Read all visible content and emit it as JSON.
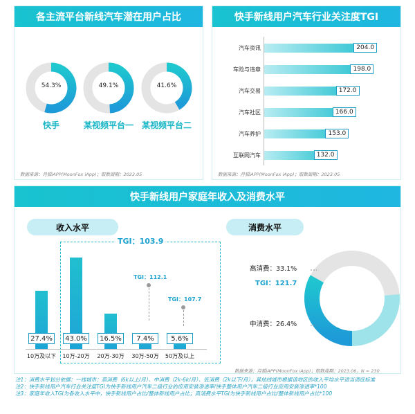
{
  "panel1": {
    "title": "各主流平台新线汽车潜在用户占比",
    "source": "数据来源：月狐iAPP(MoonFox iApp)；取数周期：2023.05",
    "chart_data": {
      "type": "pie",
      "categories": [
        "快手",
        "某视频平台一",
        "某视频平台二"
      ],
      "values": [
        54.3,
        49.1,
        41.6
      ],
      "value_labels": [
        "54.3%",
        "49.1%",
        "41.6%"
      ]
    }
  },
  "panel2": {
    "title": "快手新线用户汽车行业关注度TGI",
    "source": "数据来源：月狐iAPP(MoonFox iApp)；取数周期：2023.05",
    "chart_data": {
      "type": "bar",
      "orientation": "horizontal",
      "categories": [
        "汽车资讯",
        "车险与违章",
        "汽车交易",
        "汽车社区",
        "汽车养护",
        "互联网汽车"
      ],
      "values": [
        204.0,
        198.0,
        172.0,
        166.0,
        153.0,
        132.0
      ],
      "value_labels": [
        "204.0",
        "198.0",
        "172.0",
        "166.0",
        "153.0",
        "132.0"
      ]
    }
  },
  "panel3": {
    "title": "快手新线用户家庭年收入及消费水平",
    "source": "数据来源：月狐iAPP(MoonFox iApp)；取数周期：2023.06，N = 230",
    "income": {
      "pill": "收入水平",
      "tgi_main": "TGI：103.9",
      "tgi_3": "TGI：112.1",
      "tgi_4": "TGI：107.7",
      "chart_data": {
        "type": "bar",
        "categories": [
          "10万及以下",
          "10万-20万",
          "20万-30万",
          "30万-50万",
          "50万及以上"
        ],
        "values": [
          27.4,
          43.0,
          16.5,
          7.4,
          5.6
        ],
        "value_labels": [
          "27.4%",
          "43.0%",
          "16.5%",
          "7.4%",
          "5.6%"
        ]
      }
    },
    "consumption": {
      "pill": "消费水平",
      "high_label": "高消费：33.1%",
      "tgi": "TGI：121.7",
      "mid_label": "中消费：26.4%",
      "chart_data": {
        "type": "pie",
        "categories": [
          "高消费",
          "中消费"
        ],
        "values": [
          33.1,
          26.4
        ]
      }
    }
  },
  "notes": [
    "注1：消费水平划分依据：一线城市：高消费（6k以上/月）、中消费（2k-6k/月）、低消费（2k以下/月），其他线城市根据该地区的收入平均水平适当调低标准",
    "注2：快手新线用户汽车行业关注度TGI为快手新线用户汽车二级行业的应用安装渗透率/快手整体用户汽车二级行业应用安装渗透率*100",
    "注3：家庭年收入TGI为各收入水平中，快手新线用户占比/整体新线用户占比；高消费水平TGI为快手新线用户占比/整体新线用户占比*100"
  ],
  "colors": {
    "accent": "#1fbccf",
    "accent_dark": "#1da2d6",
    "track": "#e4e4e4"
  }
}
